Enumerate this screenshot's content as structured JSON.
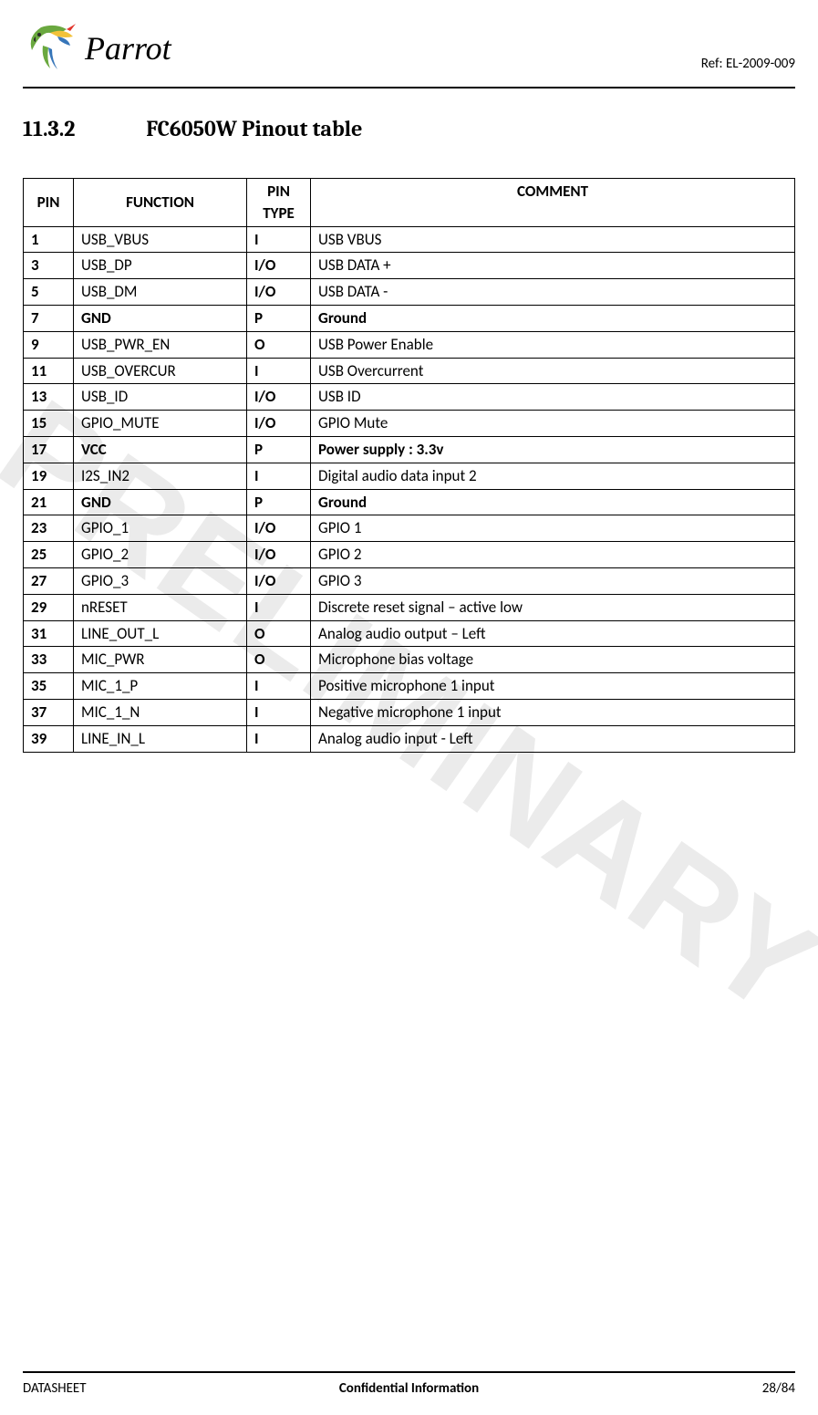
{
  "header": {
    "brand": "Parrot",
    "ref": "Ref: EL-2009-009"
  },
  "section": {
    "number": "11.3.2",
    "title": "FC6050W Pinout table"
  },
  "watermark": "PRELIMINARY",
  "table": {
    "columns": [
      "PIN",
      "FUNCTION",
      "PIN TYPE",
      "COMMENT"
    ],
    "rows": [
      {
        "pin": "1",
        "func": "USB_VBUS",
        "type": "I",
        "comment": "USB VBUS",
        "bold": false
      },
      {
        "pin": "3",
        "func": "USB_DP",
        "type": "I/O",
        "comment": "USB DATA +",
        "bold": false
      },
      {
        "pin": "5",
        "func": "USB_DM",
        "type": "I/O",
        "comment": "USB DATA -",
        "bold": false
      },
      {
        "pin": "7",
        "func": "GND",
        "type": "P",
        "comment": "Ground",
        "bold": true
      },
      {
        "pin": "9",
        "func": "USB_PWR_EN",
        "type": "O",
        "comment": "USB Power Enable",
        "bold": false
      },
      {
        "pin": "11",
        "func": "USB_OVERCUR",
        "type": "I",
        "comment": "USB Overcurrent",
        "bold": false
      },
      {
        "pin": "13",
        "func": "USB_ID",
        "type": "I/O",
        "comment": "USB ID",
        "bold": false
      },
      {
        "pin": "15",
        "func": "GPIO_MUTE",
        "type": "I/O",
        "comment": "GPIO Mute",
        "bold": false
      },
      {
        "pin": "17",
        "func": "VCC",
        "type": "P",
        "comment": "Power supply : 3.3v",
        "bold": true
      },
      {
        "pin": "19",
        "func": "I2S_IN2",
        "type": "I",
        "comment": "Digital audio data input 2",
        "bold": false
      },
      {
        "pin": "21",
        "func": "GND",
        "type": "P",
        "comment": "Ground",
        "bold": true
      },
      {
        "pin": "23",
        "func": "GPIO_1",
        "type": "I/O",
        "comment": "GPIO 1",
        "bold": false
      },
      {
        "pin": "25",
        "func": "GPIO_2",
        "type": "I/O",
        "comment": "GPIO 2",
        "bold": false
      },
      {
        "pin": "27",
        "func": "GPIO_3",
        "type": "I/O",
        "comment": "GPIO 3",
        "bold": false
      },
      {
        "pin": "29",
        "func": "nRESET",
        "type": "I",
        "comment": "Discrete reset signal – active low",
        "bold": false
      },
      {
        "pin": "31",
        "func": "LINE_OUT_L",
        "type": "O",
        "comment": "Analog  audio output – Left",
        "bold": false
      },
      {
        "pin": "33",
        "func": "MIC_PWR",
        "type": "O",
        "comment": "Microphone bias voltage",
        "bold": false
      },
      {
        "pin": "35",
        "func": "MIC_1_P",
        "type": "I",
        "comment": "Positive microphone 1 input",
        "bold": false
      },
      {
        "pin": "37",
        "func": "MIC_1_N",
        "type": "I",
        "comment": "Negative microphone 1 input",
        "bold": false
      },
      {
        "pin": "39",
        "func": "LINE_IN_L",
        "type": "I",
        "comment": "Analog audio input - Left",
        "bold": false
      }
    ]
  },
  "footer": {
    "left": "DATASHEET",
    "center": "Confidential Information",
    "right": "28/84"
  },
  "logo_colors": {
    "green": "#6aa83f",
    "red": "#e2342b",
    "yellow": "#f2c23a",
    "blue": "#3776b9",
    "dark": "#2a2a2a"
  }
}
